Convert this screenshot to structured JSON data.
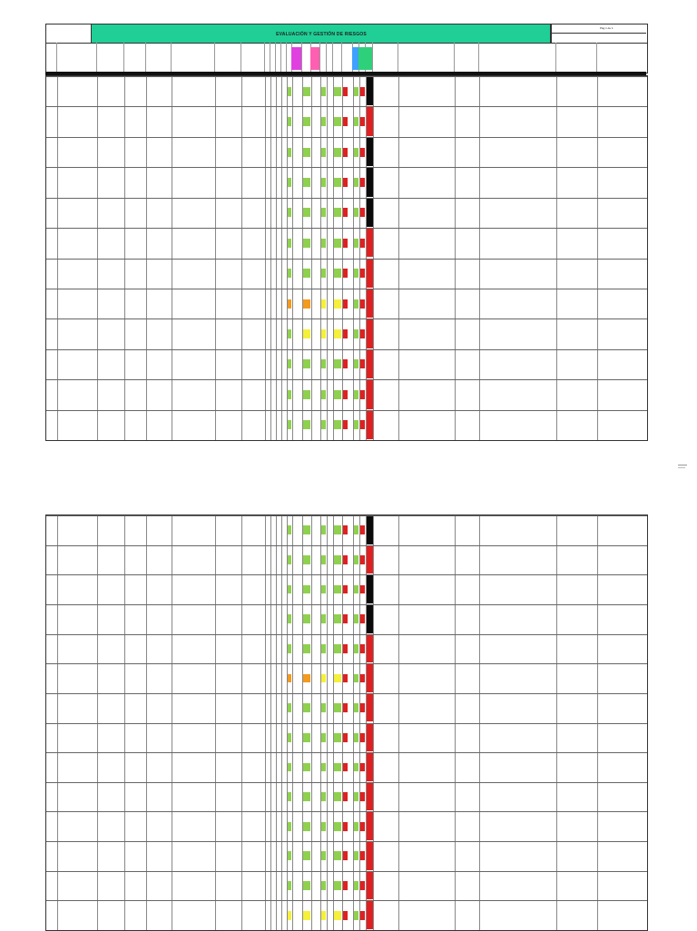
{
  "document": {
    "title": "EVALUACIÓN Y GESTIÓN DE RIESGOS",
    "page_label": "Pág 1 de 1"
  },
  "palette": {
    "title_band": "#1fcf96",
    "risk_green": "#8fd14f",
    "risk_yellow": "#f5f03a",
    "risk_orange": "#f39a1f",
    "risk_red": "#e02020",
    "risk_black": "#0a0a0a",
    "header_magenta": "#e040e0",
    "header_blue": "#3fa0ff",
    "header_green": "#2fd07a",
    "header_pink": "#ff5fb0"
  },
  "sheets": [
    {
      "rows": [
        {
          "levels": [
            "g",
            "g",
            "g",
            "g",
            "g"
          ],
          "vr": "k"
        },
        {
          "levels": [
            "g",
            "g",
            "g",
            "g",
            "g"
          ],
          "vr": "r"
        },
        {
          "levels": [
            "g",
            "g",
            "g",
            "g",
            "g"
          ],
          "vr": "k"
        },
        {
          "levels": [
            "g",
            "g",
            "g",
            "g",
            "g"
          ],
          "vr": "k"
        },
        {
          "levels": [
            "g",
            "g",
            "g",
            "g",
            "g"
          ],
          "vr": "k"
        },
        {
          "levels": [
            "g",
            "g",
            "g",
            "g",
            "g"
          ],
          "vr": "r"
        },
        {
          "levels": [
            "g",
            "g",
            "g",
            "g",
            "g"
          ],
          "vr": "r"
        },
        {
          "levels": [
            "o",
            "o",
            "y",
            "y",
            "g"
          ],
          "vr": "r"
        },
        {
          "levels": [
            "g",
            "y",
            "y",
            "y",
            "g"
          ],
          "vr": "r"
        },
        {
          "levels": [
            "g",
            "g",
            "g",
            "g",
            "g"
          ],
          "vr": "r"
        },
        {
          "levels": [
            "g",
            "g",
            "g",
            "g",
            "g"
          ],
          "vr": "r"
        },
        {
          "levels": [
            "g",
            "g",
            "g",
            "g",
            "g"
          ],
          "vr": "r"
        }
      ]
    },
    {
      "rows": [
        {
          "levels": [
            "g",
            "g",
            "g",
            "g",
            "g"
          ],
          "vr": "k"
        },
        {
          "levels": [
            "g",
            "g",
            "g",
            "g",
            "g"
          ],
          "vr": "r"
        },
        {
          "levels": [
            "g",
            "g",
            "g",
            "g",
            "g"
          ],
          "vr": "k"
        },
        {
          "levels": [
            "g",
            "g",
            "g",
            "g",
            "g"
          ],
          "vr": "k"
        },
        {
          "levels": [
            "g",
            "g",
            "g",
            "g",
            "g"
          ],
          "vr": "r"
        },
        {
          "levels": [
            "o",
            "o",
            "y",
            "y",
            "g"
          ],
          "vr": "r"
        },
        {
          "levels": [
            "g",
            "g",
            "g",
            "g",
            "g"
          ],
          "vr": "r"
        },
        {
          "levels": [
            "g",
            "g",
            "g",
            "g",
            "g"
          ],
          "vr": "r"
        },
        {
          "levels": [
            "g",
            "g",
            "g",
            "g",
            "g"
          ],
          "vr": "r"
        },
        {
          "levels": [
            "g",
            "g",
            "g",
            "g",
            "g"
          ],
          "vr": "r"
        },
        {
          "levels": [
            "g",
            "g",
            "g",
            "g",
            "g"
          ],
          "vr": "r"
        },
        {
          "levels": [
            "g",
            "g",
            "g",
            "g",
            "g"
          ],
          "vr": "r"
        },
        {
          "levels": [
            "g",
            "g",
            "g",
            "g",
            "g"
          ],
          "vr": "r"
        },
        {
          "levels": [
            "y",
            "y",
            "y",
            "y",
            "g"
          ],
          "vr": "r"
        }
      ]
    }
  ]
}
